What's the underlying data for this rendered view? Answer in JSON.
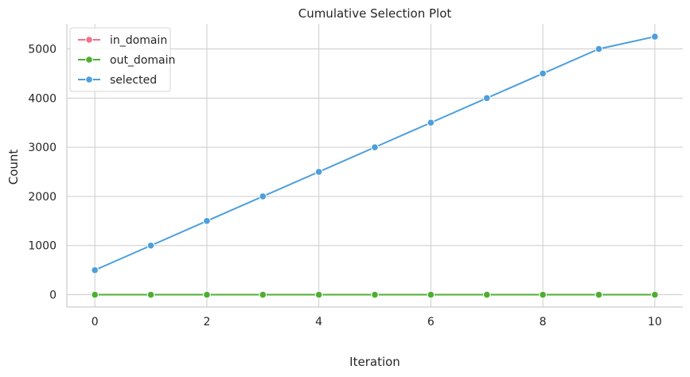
{
  "chart_data": {
    "type": "line",
    "title": "Cumulative Selection Plot",
    "xlabel": "Iteration",
    "ylabel": "Count",
    "x": [
      0,
      1,
      2,
      3,
      4,
      5,
      6,
      7,
      8,
      9,
      10
    ],
    "xticks": [
      0,
      2,
      4,
      6,
      8,
      10
    ],
    "xlim": [
      -0.5,
      10.5
    ],
    "ylim": [
      -250,
      5510
    ],
    "yticks": [
      0,
      1000,
      2000,
      3000,
      4000,
      5000
    ],
    "grid": true,
    "legend_position": "top-left",
    "series": [
      {
        "name": "in_domain",
        "color": "#f0728a",
        "values": [
          0,
          0,
          0,
          0,
          0,
          0,
          0,
          0,
          0,
          0,
          0
        ]
      },
      {
        "name": "out_domain",
        "color": "#4daf30",
        "values": [
          0,
          0,
          0,
          0,
          0,
          0,
          0,
          0,
          0,
          0,
          0
        ]
      },
      {
        "name": "selected",
        "color": "#4c9fdc",
        "values": [
          500,
          1000,
          1500,
          2000,
          2500,
          3000,
          3500,
          4000,
          4500,
          5000,
          5250
        ]
      }
    ]
  }
}
